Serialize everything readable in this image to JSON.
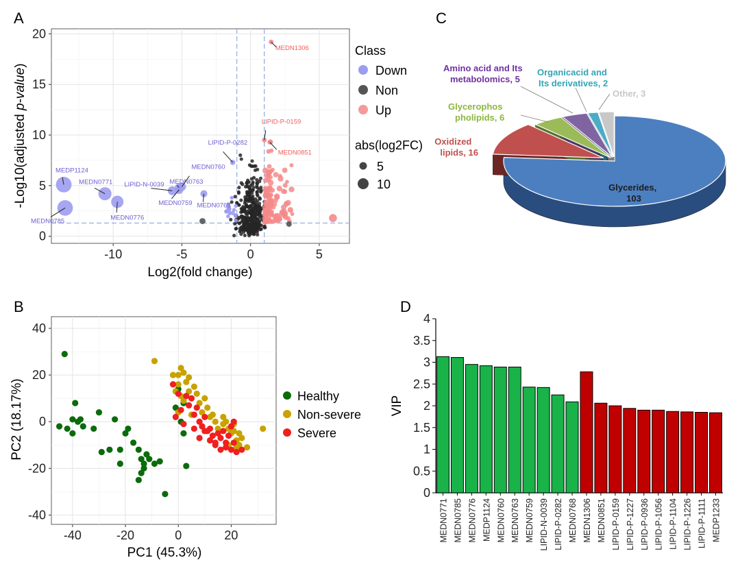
{
  "panel_labels": [
    "A",
    "B",
    "C",
    "D"
  ],
  "chart_data": [
    {
      "panel": "A",
      "type": "scatter",
      "xlabel": "Log2(fold change)",
      "ylabel_main": "-Log10(adjusted ",
      "ylabel_italic": "p-value",
      "ylabel_end": ")",
      "xlim": [
        -14.5,
        7.2
      ],
      "ylim": [
        -0.7,
        20.5
      ],
      "xticks": [
        -10,
        -5,
        0,
        5
      ],
      "yticks": [
        0,
        5,
        10,
        15,
        20
      ],
      "grid": true,
      "thresholds": {
        "x": [
          -1,
          1
        ],
        "y": 1.3
      },
      "legend_class_title": "Class",
      "legend_class_items": [
        {
          "name": "Down",
          "color": "#9c9cf0"
        },
        {
          "name": "Non",
          "color": "#555555"
        },
        {
          "name": "Up",
          "color": "#f59a9a"
        }
      ],
      "legend_size_title": "abs(log2FC)",
      "legend_size_items": [
        "5",
        "10"
      ],
      "colors": {
        "down": "#9c9cf0",
        "non": "#262626",
        "up": "#f58a8a",
        "down_label": "#6d5fd0",
        "up_label": "#f25c5c"
      },
      "labeled_points": [
        {
          "label": "MEDP1124",
          "x": -13.6,
          "y": 5.1,
          "class": "down"
        },
        {
          "label": "MEDN0771",
          "x": -10.6,
          "y": 4.2,
          "class": "down"
        },
        {
          "label": "MEDN0785",
          "x": -13.5,
          "y": 2.8,
          "class": "down"
        },
        {
          "label": "MEDN0776",
          "x": -9.7,
          "y": 3.4,
          "class": "down"
        },
        {
          "label": "LIPID-N-0039",
          "x": -5.7,
          "y": 4.5,
          "class": "down"
        },
        {
          "label": "MEDN0759",
          "x": -5.2,
          "y": 4.6,
          "class": "down"
        },
        {
          "label": "MEDN0763",
          "x": -5.2,
          "y": 4.8,
          "class": "down"
        },
        {
          "label": "MEDN0760",
          "x": -5.0,
          "y": 4.9,
          "class": "down"
        },
        {
          "label": "MEDN0768",
          "x": -3.4,
          "y": 4.2,
          "class": "down"
        },
        {
          "label": "LIPID-P-0282",
          "x": -1.3,
          "y": 7.3,
          "class": "down"
        },
        {
          "label": "MEDN1306",
          "x": 1.5,
          "y": 19.2,
          "class": "up"
        },
        {
          "label": "LIPID-P-0159",
          "x": 1.0,
          "y": 9.5,
          "class": "up"
        },
        {
          "label": "MEDN0851",
          "x": 1.4,
          "y": 9.3,
          "class": "up"
        }
      ],
      "extra_points": [
        {
          "x": 6.0,
          "y": 1.8,
          "class": "up"
        },
        {
          "x": 2.9,
          "y": 2.6,
          "class": "up"
        },
        {
          "x": 2.6,
          "y": 3.2,
          "class": "up"
        },
        {
          "x": 2.3,
          "y": 2.4,
          "class": "up"
        },
        {
          "x": 2.8,
          "y": 1.2,
          "class": "non"
        },
        {
          "x": -3.5,
          "y": 1.5,
          "class": "non"
        },
        {
          "x": -1.6,
          "y": 2.5,
          "class": "down"
        },
        {
          "x": -1.3,
          "y": 2.3,
          "class": "down"
        }
      ]
    },
    {
      "panel": "B",
      "type": "scatter",
      "xlabel": "PC1 (45.3%)",
      "ylabel": "PC2 (18.17%)",
      "xlim": [
        -48,
        37
      ],
      "ylim": [
        -44,
        45
      ],
      "xticks": [
        -40,
        -20,
        0,
        20
      ],
      "yticks": [
        -40,
        -20,
        0,
        20,
        40
      ],
      "grid": true,
      "series": [
        {
          "name": "Healthy",
          "color": "#0b6b0b",
          "points": [
            [
              -45,
              -2
            ],
            [
              -43,
              29
            ],
            [
              -42,
              -3
            ],
            [
              -40,
              1
            ],
            [
              -39,
              8
            ],
            [
              -40,
              -5
            ],
            [
              -38,
              0
            ],
            [
              -37,
              1
            ],
            [
              -36,
              -2
            ],
            [
              -32,
              -3
            ],
            [
              -30,
              4
            ],
            [
              -29,
              -13
            ],
            [
              -26,
              -12
            ],
            [
              -24,
              1
            ],
            [
              -22,
              -18
            ],
            [
              -22,
              -12
            ],
            [
              -20,
              -5
            ],
            [
              -19,
              -3
            ],
            [
              -17,
              -9
            ],
            [
              -15,
              -12
            ],
            [
              -14,
              -16
            ],
            [
              -13,
              -20
            ],
            [
              -14,
              -22
            ],
            [
              -15,
              -25
            ],
            [
              -13,
              -18
            ],
            [
              -12,
              -14
            ],
            [
              -11,
              -16
            ],
            [
              -9,
              -18
            ],
            [
              -7,
              -17
            ],
            [
              -5,
              -31
            ],
            [
              0,
              14
            ],
            [
              1,
              0
            ],
            [
              2,
              -5
            ],
            [
              3,
              -19
            ],
            [
              -1,
              6
            ],
            [
              2,
              8
            ]
          ]
        },
        {
          "name": "Non-severe",
          "color": "#c8a200",
          "points": [
            [
              -9,
              26
            ],
            [
              -2,
              20
            ],
            [
              0,
              20
            ],
            [
              1,
              23
            ],
            [
              2,
              21
            ],
            [
              3,
              17
            ],
            [
              4,
              19
            ],
            [
              0,
              16
            ],
            [
              -1,
              13
            ],
            [
              1,
              11
            ],
            [
              2,
              9
            ],
            [
              4,
              13
            ],
            [
              6,
              15
            ],
            [
              7,
              12
            ],
            [
              8,
              8
            ],
            [
              9,
              4
            ],
            [
              10,
              10
            ],
            [
              12,
              2
            ],
            [
              13,
              3
            ],
            [
              14,
              0
            ],
            [
              15,
              -3
            ],
            [
              17,
              -1
            ],
            [
              18,
              0
            ],
            [
              19,
              -3
            ],
            [
              20,
              -5
            ],
            [
              21,
              -1
            ],
            [
              21,
              -4
            ],
            [
              22,
              -8
            ],
            [
              23,
              -5
            ],
            [
              24,
              -7
            ],
            [
              26,
              -11
            ],
            [
              23,
              -10
            ],
            [
              22,
              -11
            ],
            [
              19,
              -10
            ],
            [
              32,
              -3
            ],
            [
              0,
              4
            ],
            [
              11,
              6
            ],
            [
              17,
              2
            ],
            [
              5,
              3
            ]
          ]
        },
        {
          "name": "Severe",
          "color": "#ee2020",
          "points": [
            [
              -2,
              16
            ],
            [
              0,
              12
            ],
            [
              1,
              5
            ],
            [
              -1,
              2
            ],
            [
              3,
              11
            ],
            [
              4,
              7
            ],
            [
              5,
              10
            ],
            [
              6,
              3
            ],
            [
              7,
              6
            ],
            [
              8,
              0
            ],
            [
              9,
              -2
            ],
            [
              10,
              2
            ],
            [
              11,
              -4
            ],
            [
              12,
              -3
            ],
            [
              13,
              -6
            ],
            [
              14,
              -9
            ],
            [
              16,
              -7
            ],
            [
              17,
              -4
            ],
            [
              18,
              -9
            ],
            [
              19,
              -6
            ],
            [
              20,
              -2
            ],
            [
              21,
              -9
            ],
            [
              22,
              -13
            ],
            [
              24,
              -12
            ],
            [
              8,
              -7
            ],
            [
              12,
              -8
            ],
            [
              16,
              -12
            ],
            [
              20,
              -12
            ],
            [
              18,
              -11
            ],
            [
              10,
              -4
            ],
            [
              6,
              -3
            ],
            [
              2,
              -1
            ],
            [
              15,
              -5
            ],
            [
              21,
              0
            ],
            [
              14,
              -10
            ]
          ]
        }
      ]
    },
    {
      "panel": "C",
      "type": "pie",
      "title": "",
      "slices": [
        {
          "name": "Glycerides,",
          "value": 103,
          "color": "#4c7fc0",
          "side": "#2a4d7f",
          "label_color": "#1c1c1c"
        },
        {
          "name": "Oxidized lipids,",
          "value": 16,
          "color": "#c0504d",
          "side": "#6b2624",
          "label_color": "#c0504d"
        },
        {
          "name": "Glycerophos pholipids,",
          "value": 6,
          "color": "#9bbb59",
          "side": "#5a7130",
          "label_color": "#8db63f"
        },
        {
          "name": "Amino acid  and Its metabolomics,",
          "value": 5,
          "color": "#8064a2",
          "side": "#4a3a62",
          "label_color": "#7030a0"
        },
        {
          "name": "Organicacid and Its derivatives,",
          "value": 2,
          "color": "#4bacc6",
          "side": "#2a6b7c",
          "label_color": "#31a5b5"
        },
        {
          "name": "Other,",
          "value": 3,
          "color": "#c8c8c8",
          "side": "#7c7c7c",
          "label_color": "#c8c8c8"
        }
      ],
      "label_lines": [
        [
          "Glycerides,",
          "103"
        ],
        [
          "Oxidized",
          "lipids, 16"
        ],
        [
          "Glycerophos",
          "pholipids, 6"
        ],
        [
          "Amino acid  and Its",
          "metabolomics, 5"
        ],
        [
          "Organicacid and",
          "Its derivatives, 2"
        ],
        [
          "Other, 3"
        ]
      ]
    },
    {
      "panel": "D",
      "type": "bar",
      "ylabel": "VIP",
      "ylim": [
        0,
        4
      ],
      "yticks": [
        "0",
        "0.5",
        "1",
        "1.5",
        "2",
        "2.5",
        "3",
        "3.5",
        "4"
      ],
      "colors": {
        "green": "#19b34a",
        "red": "#c00000"
      },
      "categories": [
        "MEDN0771",
        "MEDN0785",
        "MEDN0776",
        "MEDP1124",
        "MEDN0760",
        "MEDN0763",
        "MEDN0759",
        "LIPID-N-0039",
        "LIPID-P-0282",
        "MEDN0768",
        "MEDN1306",
        "MEDN0851",
        "LIPID-P-0159",
        "LIPID-P-1227",
        "LIPID-P-0936",
        "LIPID-P-1056",
        "LIPID-P-1104",
        "LIPID-P-1226",
        "LIPID-P-1111",
        "MEDP1233"
      ],
      "values": [
        3.13,
        3.11,
        2.95,
        2.92,
        2.89,
        2.89,
        2.43,
        2.42,
        2.25,
        2.09,
        2.78,
        2.06,
        2.0,
        1.94,
        1.9,
        1.9,
        1.87,
        1.86,
        1.85,
        1.84
      ],
      "bar_color_groups": [
        "green",
        "green",
        "green",
        "green",
        "green",
        "green",
        "green",
        "green",
        "green",
        "green",
        "red",
        "red",
        "red",
        "red",
        "red",
        "red",
        "red",
        "red",
        "red",
        "red"
      ]
    }
  ]
}
